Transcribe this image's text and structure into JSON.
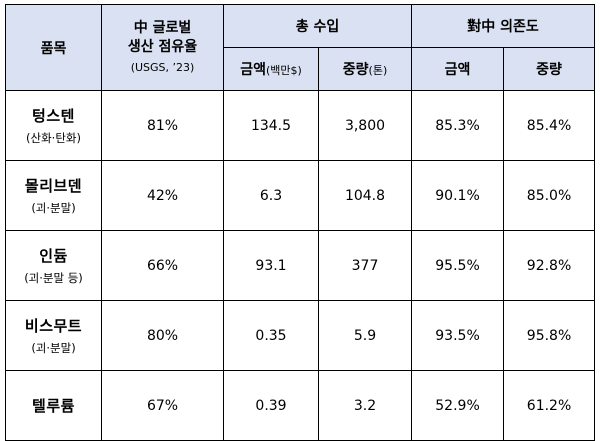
{
  "header": {
    "item": "품목",
    "share_line1": "中 글로벌",
    "share_line2": "생산 점유율",
    "share_note": "(USGS, ’23)",
    "imports_group": "총 수입",
    "imports_amount": "금액",
    "imports_amount_unit": "(백만$)",
    "imports_weight": "중량",
    "imports_weight_unit": "(톤)",
    "dependence_group": "對中 의존도",
    "dependence_amount": "금액",
    "dependence_weight": "중량"
  },
  "rows": [
    {
      "name": "텅스텐",
      "sub": "(산화·탄화)",
      "share": "81%",
      "amount": "134.5",
      "weight": "3,800",
      "dep_amount": "85.3%",
      "dep_weight": "85.4%"
    },
    {
      "name": "몰리브덴",
      "sub": "(괴·분말)",
      "share": "42%",
      "amount": "6.3",
      "weight": "104.8",
      "dep_amount": "90.1%",
      "dep_weight": "85.0%"
    },
    {
      "name": "인듐",
      "sub": "(괴·분말 등)",
      "share": "66%",
      "amount": "93.1",
      "weight": "377",
      "dep_amount": "95.5%",
      "dep_weight": "92.8%"
    },
    {
      "name": "비스무트",
      "sub": "(괴·분말)",
      "share": "80%",
      "amount": "0.35",
      "weight": "5.9",
      "dep_amount": "93.5%",
      "dep_weight": "95.8%"
    },
    {
      "name": "텔루륨",
      "sub": "",
      "share": "67%",
      "amount": "0.39",
      "weight": "3.2",
      "dep_amount": "52.9%",
      "dep_weight": "61.2%"
    }
  ]
}
